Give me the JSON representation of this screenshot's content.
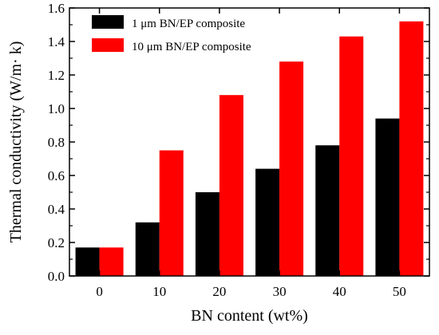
{
  "chart_data": {
    "type": "bar",
    "title": "",
    "xlabel": "BN content (wt%)",
    "ylabel": "Thermal conductivity (W/m· k)",
    "categories": [
      "0",
      "10",
      "20",
      "30",
      "40",
      "50"
    ],
    "ylim": [
      0,
      1.6
    ],
    "yticks": [
      "0.0",
      "0.2",
      "0.4",
      "0.6",
      "0.8",
      "1.0",
      "1.2",
      "1.4",
      "1.6"
    ],
    "grid": false,
    "legend_position": "top-left",
    "series": [
      {
        "name": "1 μm BN/EP composite",
        "color": "#000000",
        "values": [
          0.17,
          0.32,
          0.5,
          0.64,
          0.78,
          0.94
        ]
      },
      {
        "name": "10 μm BN/EP composite",
        "color": "#ff0000",
        "values": [
          0.17,
          0.75,
          1.08,
          1.28,
          1.43,
          1.52
        ]
      }
    ]
  }
}
